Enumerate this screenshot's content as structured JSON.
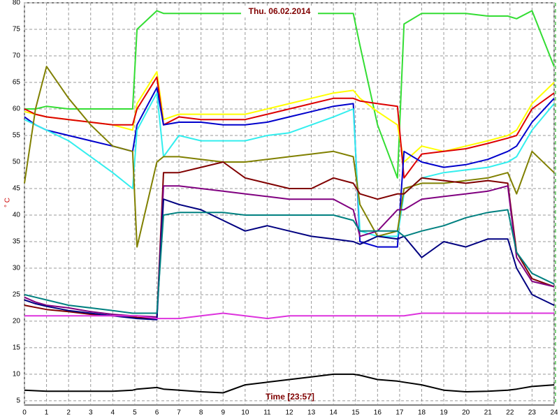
{
  "chart_data": {
    "type": "line",
    "title": "Thu. 06.02.2014",
    "x_label": "Time [23:57]",
    "y_label": "° C",
    "x": [
      0,
      0.5,
      1,
      2,
      3,
      4,
      4.9,
      5.1,
      6,
      6.3,
      7,
      8,
      9,
      10,
      11,
      12,
      13,
      14,
      14.9,
      15.2,
      16,
      16.9,
      17.2,
      18,
      19,
      20,
      21,
      21.9,
      22.3,
      23,
      24
    ],
    "xlim": [
      0,
      24
    ],
    "xticks": [
      0,
      1,
      2,
      3,
      4,
      5,
      6,
      7,
      8,
      9,
      10,
      11,
      12,
      13,
      14,
      15,
      16,
      17,
      18,
      19,
      20,
      21,
      22,
      23,
      24
    ],
    "ylim": [
      4.2,
      80
    ],
    "yticks": [
      5,
      10,
      15,
      20,
      25,
      30,
      35,
      40,
      45,
      50,
      55,
      60,
      65,
      70,
      75,
      80
    ],
    "grid": true,
    "series": [
      {
        "color": "#33dd33",
        "values": [
          60,
          60,
          60.5,
          60,
          60,
          60,
          60,
          75,
          78.5,
          78,
          78,
          78,
          78,
          78,
          78,
          78,
          78,
          78,
          78,
          72,
          57,
          47,
          76,
          78,
          78,
          78,
          77.5,
          77.5,
          77,
          78.5,
          68
        ]
      },
      {
        "color": "#ffff00",
        "values": [
          59.5,
          59,
          58.5,
          58,
          57.5,
          57,
          56,
          61,
          67,
          58,
          59,
          59,
          59,
          59,
          60,
          61,
          62,
          63,
          63.5,
          62,
          59.5,
          57,
          50,
          53,
          52,
          53,
          54,
          55,
          56,
          61,
          65
        ]
      },
      {
        "color": "#dd0000",
        "values": [
          60,
          59,
          58.5,
          58,
          57.5,
          57,
          57,
          60,
          66,
          57,
          58.5,
          58,
          58,
          58,
          59,
          60,
          61,
          62,
          62,
          61.5,
          61,
          60.5,
          47,
          51.5,
          52,
          52.5,
          53.5,
          54.5,
          55,
          60,
          63
        ]
      },
      {
        "color": "#0000cc",
        "values": [
          58.5,
          57,
          56,
          55,
          54,
          53,
          52,
          57,
          64,
          57,
          57.5,
          57.5,
          57,
          57,
          57.5,
          58.5,
          59.5,
          60.5,
          61,
          35,
          34,
          34,
          52,
          50,
          49,
          49.5,
          50.5,
          52,
          53,
          57.5,
          62
        ]
      },
      {
        "color": "#33eeee",
        "values": [
          58,
          57,
          56,
          54,
          51,
          48,
          45,
          56,
          63,
          51,
          55,
          54,
          54,
          54,
          55,
          55.5,
          57,
          58.5,
          60,
          37,
          36,
          36,
          44,
          47,
          48,
          48.5,
          49,
          50,
          51,
          56,
          61
        ]
      },
      {
        "color": "#808000",
        "values": [
          46,
          60,
          68,
          62,
          57,
          53,
          52,
          34,
          50,
          51,
          51,
          50.5,
          50,
          50,
          50.5,
          51,
          51.5,
          52,
          51,
          42,
          36,
          37,
          45,
          46,
          46,
          46.5,
          47,
          48,
          44,
          52,
          48
        ]
      },
      {
        "color": "#800000",
        "values": [
          23,
          22.6,
          22.2,
          21.8,
          21.3,
          21,
          20.8,
          20.7,
          20.5,
          48,
          48,
          49,
          50,
          47,
          46,
          45,
          45,
          47,
          46,
          44,
          43,
          44,
          44,
          47,
          46.5,
          46,
          46.5,
          46,
          33,
          28,
          26.5
        ]
      },
      {
        "color": "#800080",
        "values": [
          24.5,
          23.6,
          23,
          22.5,
          21.8,
          21.3,
          21,
          21,
          20.8,
          45.5,
          45.5,
          45,
          44.5,
          44,
          43.5,
          43,
          43,
          43,
          41,
          36,
          37,
          41,
          41,
          43,
          43.5,
          44,
          44.5,
          45.5,
          32,
          27.5,
          26.5
        ]
      },
      {
        "color": "#000080",
        "values": [
          24,
          23.3,
          22.8,
          22,
          21.5,
          21,
          20.6,
          20.5,
          20.3,
          43,
          42,
          41,
          39,
          37,
          38,
          37,
          36,
          35.5,
          35,
          34.5,
          36,
          35.5,
          36,
          32,
          35,
          34,
          35.5,
          35.5,
          30,
          25,
          23
        ]
      },
      {
        "color": "#008080",
        "values": [
          25,
          24.5,
          24,
          23,
          22.5,
          22,
          21.5,
          21.5,
          21.5,
          40,
          40.5,
          40.5,
          40.5,
          40,
          40,
          40,
          40,
          40,
          39,
          37,
          37,
          37,
          36,
          37,
          38,
          39.5,
          40.5,
          41,
          33,
          29,
          27
        ]
      },
      {
        "color": "#dd33dd",
        "values": [
          21,
          21,
          21,
          21,
          21,
          21,
          21,
          21,
          20.5,
          20.5,
          20.5,
          21,
          21.5,
          21,
          20.5,
          21,
          21,
          21,
          21,
          21,
          21,
          21,
          21,
          21.5,
          21.5,
          21.5,
          21.5,
          21.5,
          21.5,
          21.5,
          21.5
        ]
      },
      {
        "color": "#000000",
        "values": [
          7,
          6.9,
          6.8,
          6.8,
          6.8,
          6.8,
          7,
          7.2,
          7.5,
          7.2,
          7,
          6.7,
          6.5,
          8,
          8.5,
          9,
          9.5,
          10,
          10,
          9.8,
          9,
          8.7,
          8.5,
          8,
          7,
          6.7,
          6.8,
          7,
          7.2,
          7.7,
          8
        ]
      }
    ]
  }
}
